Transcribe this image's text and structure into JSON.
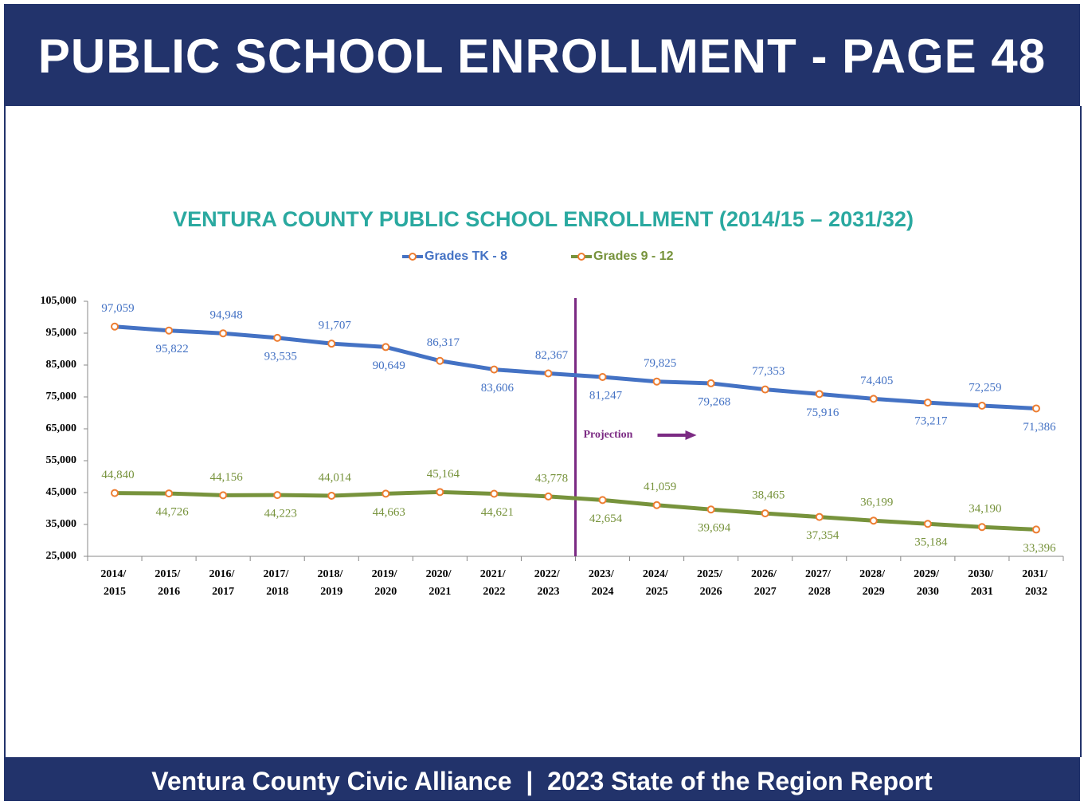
{
  "header": {
    "title": "PUBLIC SCHOOL ENROLLMENT - PAGE 48"
  },
  "footer": {
    "text": "Ventura County Civic Alliance  |  2023 State of the Region Report"
  },
  "chart_data": {
    "type": "line",
    "title": "VENTURA COUNTY PUBLIC SCHOOL ENROLLMENT (2014/15 – 2031/32)",
    "annotation": "Projection",
    "categories": [
      "2014/ 2015",
      "2015/ 2016",
      "2016/ 2017",
      "2017/ 2018",
      "2018/ 2019",
      "2019/ 2020",
      "2020/ 2021",
      "2021/ 2022",
      "2022/ 2023",
      "2023/ 2024",
      "2024/ 2025",
      "2025/ 2026",
      "2026/ 2027",
      "2027/ 2028",
      "2028/ 2029",
      "2029/ 2030",
      "2030/ 2031",
      "2031/ 2032"
    ],
    "series": [
      {
        "name": "Grades TK - 8",
        "color": "#4472c4",
        "marker_color": "#ed7d31",
        "values": [
          97059,
          95822,
          94948,
          93535,
          91707,
          90649,
          86317,
          83606,
          82367,
          81247,
          79825,
          79268,
          77353,
          75916,
          74405,
          73217,
          72259,
          71386
        ],
        "value_labels": [
          "97,059",
          "95,822",
          "94,948",
          "93,535",
          "91,707",
          "90,649",
          "86,317",
          "83,606",
          "82,367",
          "81,247",
          "79,825",
          "79,268",
          "77,353",
          "75,916",
          "74,405",
          "73,217",
          "72,259",
          "71,386"
        ]
      },
      {
        "name": "Grades 9 - 12",
        "color": "#77933c",
        "marker_color": "#ed7d31",
        "values": [
          44840,
          44726,
          44156,
          44223,
          44014,
          44663,
          45164,
          44621,
          43778,
          42654,
          41059,
          39694,
          38465,
          37354,
          36199,
          35184,
          34190,
          33396
        ],
        "value_labels": [
          "44,840",
          "44,726",
          "44,156",
          "44,223",
          "44,014",
          "44,663",
          "45,164",
          "44,621",
          "43,778",
          "42,654",
          "41,059",
          "39,694",
          "38,465",
          "37,354",
          "36,199",
          "35,184",
          "34,190",
          "33,396"
        ]
      }
    ],
    "ylim": [
      25000,
      105000
    ],
    "yticks": [
      {
        "value": 25000,
        "label": "25,000"
      },
      {
        "value": 35000,
        "label": "35,000"
      },
      {
        "value": 45000,
        "label": "45,000"
      },
      {
        "value": 55000,
        "label": "55,000"
      },
      {
        "value": 65000,
        "label": "65,000"
      },
      {
        "value": 75000,
        "label": "75,000"
      },
      {
        "value": 85000,
        "label": "85,000"
      },
      {
        "value": 95000,
        "label": "95,000"
      },
      {
        "value": 105000,
        "label": "105,000"
      }
    ],
    "grid": false,
    "legend": "top"
  }
}
